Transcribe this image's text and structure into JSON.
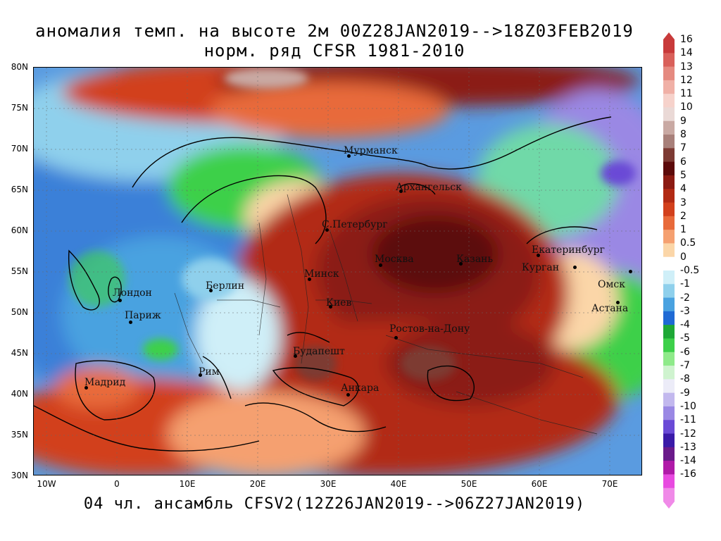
{
  "title_line1": "аномалия темп. на высоте 2м 00Z28JAN2019-->18Z03FEB2019",
  "title_line2": "норм. ряд CFSR 1981-2010",
  "footer": "04 чл. ансамбль CFSV2(12Z26JAN2019-->06Z27JAN2019)",
  "latitude_labels": [
    "80N",
    "75N",
    "70N",
    "65N",
    "60N",
    "55N",
    "50N",
    "45N",
    "40N",
    "35N",
    "30N"
  ],
  "longitude_labels": [
    "10W",
    "0",
    "10E",
    "20E",
    "30E",
    "40E",
    "50E",
    "60E",
    "70E"
  ],
  "cities": [
    {
      "name": "Мурманск"
    },
    {
      "name": "Архангельск"
    },
    {
      "name": "С.Петербург"
    },
    {
      "name": "Екатеринбург"
    },
    {
      "name": "Москва"
    },
    {
      "name": "Казань"
    },
    {
      "name": "Курган"
    },
    {
      "name": "Омск"
    },
    {
      "name": "Минск"
    },
    {
      "name": "Лондон"
    },
    {
      "name": "Берлин"
    },
    {
      "name": "Астана"
    },
    {
      "name": "Париж"
    },
    {
      "name": "Киев"
    },
    {
      "name": "Ростов-на-Дону"
    },
    {
      "name": "Будапешт"
    },
    {
      "name": "Мадрид"
    },
    {
      "name": "Рим"
    },
    {
      "name": "Анкара"
    }
  ],
  "colorbar": {
    "labels": [
      "16",
      "14",
      "13",
      "12",
      "11",
      "10",
      "9",
      "8",
      "7",
      "6",
      "5",
      "4",
      "3",
      "2",
      "1",
      "0.5",
      "0",
      "-0.5",
      "-1",
      "-2",
      "-3",
      "-4",
      "-5",
      "-6",
      "-7",
      "-8",
      "-9",
      "-10",
      "-11",
      "-12",
      "-13",
      "-14",
      "-16"
    ],
    "colors": [
      "#c83a3a",
      "#d9605a",
      "#e58a80",
      "#f0b0a6",
      "#f6d2cb",
      "#ead9d6",
      "#c9a9a3",
      "#a8807a",
      "#7d3a33",
      "#5c0a0a",
      "#8b1a12",
      "#b22a14",
      "#d2401c",
      "#e86a3a",
      "#f5a070",
      "#fbd6a8",
      "#ffffff",
      "#cfeff8",
      "#8fd0ec",
      "#4aa2e0",
      "#1f6ad4",
      "#1ea836",
      "#3dd04a",
      "#8fea8a",
      "#cff3cf",
      "#ececf8",
      "#c2b8ee",
      "#9a88e4",
      "#6a4ad6",
      "#3a1aa8",
      "#6a1a8a",
      "#b01aa8",
      "#e84ae0",
      "#f08ae8"
    ]
  }
}
